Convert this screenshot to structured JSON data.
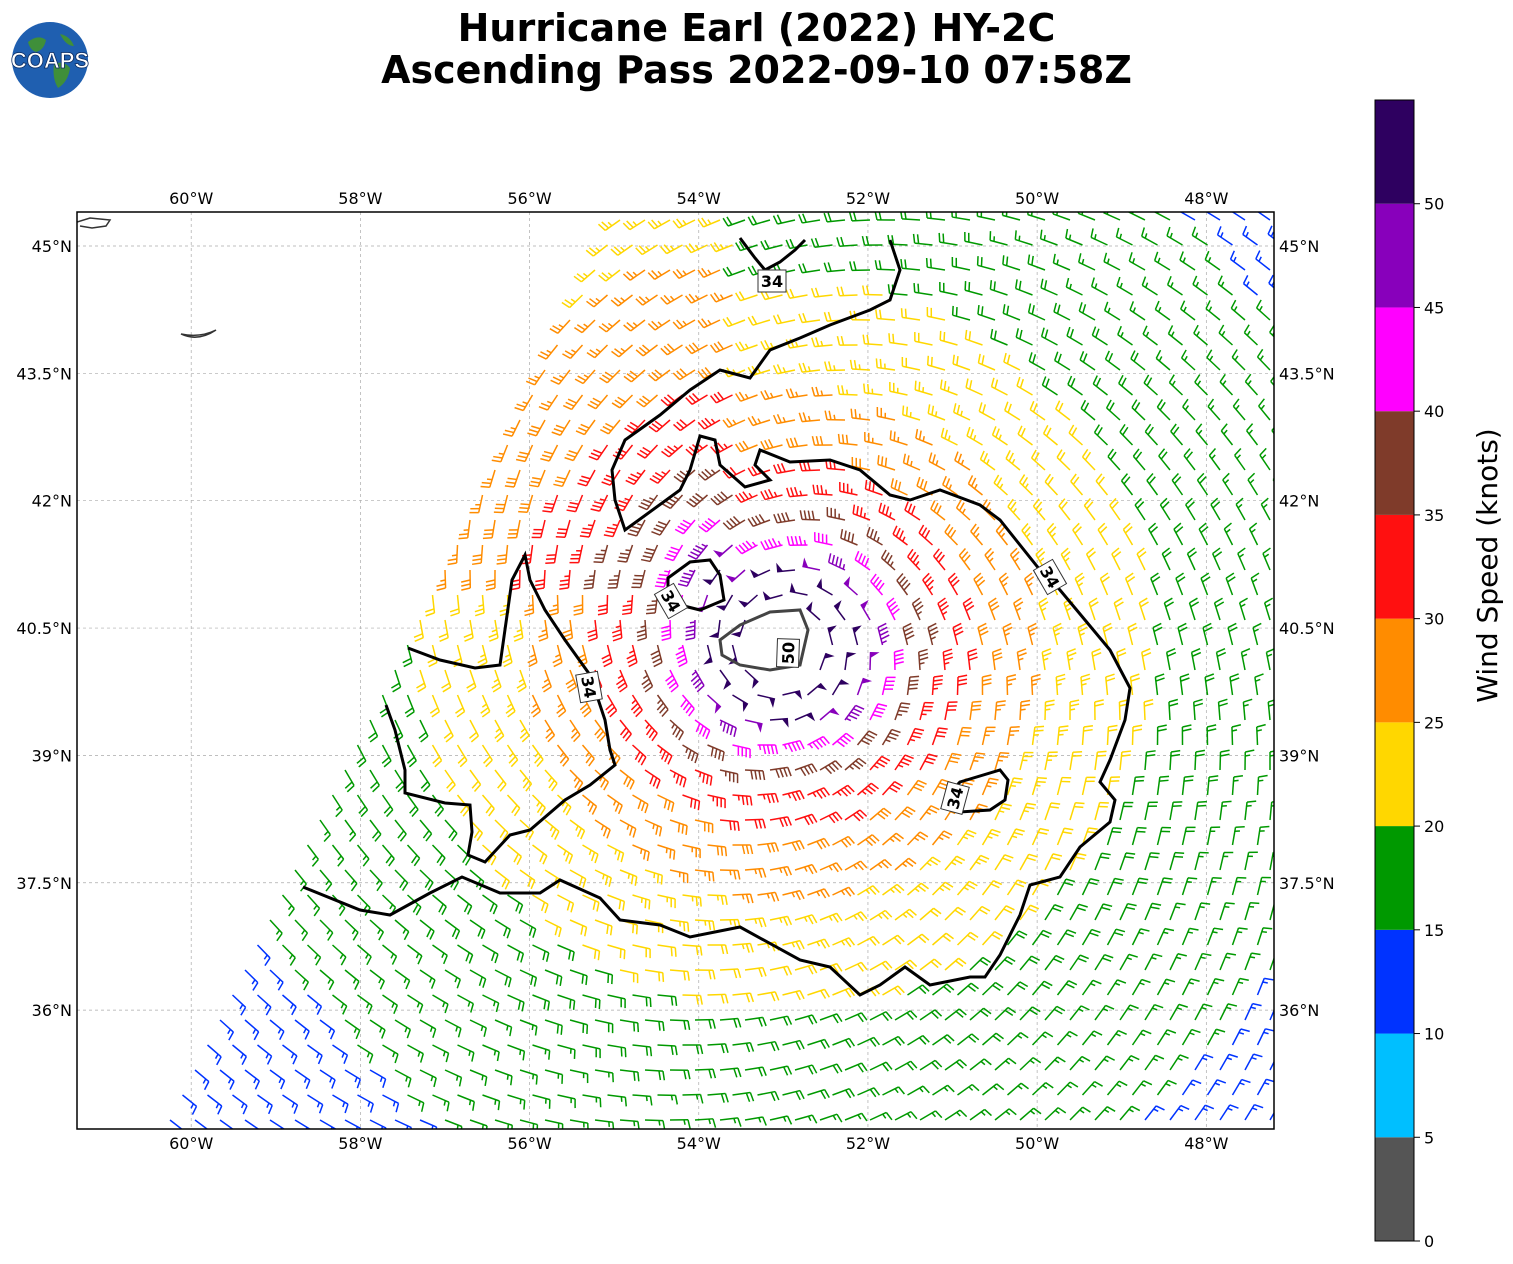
{
  "title": {
    "line1": "Hurricane Earl (2022) HY-2C",
    "line2": "Ascending Pass 2022-09-10 07:58Z"
  },
  "logo": {
    "text": "COAPS",
    "icon": "globe-logo"
  },
  "map": {
    "lon_range": [
      -61.35,
      -47.2
    ],
    "lat_range": [
      34.6,
      45.4
    ],
    "lon_ticks": [
      {
        "value": -60,
        "label": "60°W"
      },
      {
        "value": -58,
        "label": "58°W"
      },
      {
        "value": -56,
        "label": "56°W"
      },
      {
        "value": -54,
        "label": "54°W"
      },
      {
        "value": -52,
        "label": "52°W"
      },
      {
        "value": -50,
        "label": "50°W"
      },
      {
        "value": -48,
        "label": "48°W"
      }
    ],
    "lat_ticks": [
      {
        "value": 45,
        "label": "45°N"
      },
      {
        "value": 43.5,
        "label": "43.5°N"
      },
      {
        "value": 42,
        "label": "42°N"
      },
      {
        "value": 40.5,
        "label": "40.5°N"
      },
      {
        "value": 39,
        "label": "39°N"
      },
      {
        "value": 37.5,
        "label": "37.5°N"
      },
      {
        "value": 36,
        "label": "36°N"
      }
    ],
    "grid": true,
    "storm_center": {
      "lon": -53.0,
      "lat": 40.3
    },
    "contour_labels": [
      "34",
      "34",
      "34",
      "34",
      "34",
      "50"
    ]
  },
  "colorbar": {
    "label": "Wind Speed (knots)",
    "bounds": [
      0,
      5,
      10,
      15,
      20,
      25,
      30,
      35,
      40,
      45,
      50,
      55
    ],
    "tick_labels": [
      "0",
      "5",
      "10",
      "15",
      "20",
      "25",
      "30",
      "35",
      "40",
      "45",
      "50"
    ],
    "colors": [
      "#555555",
      "#00bfff",
      "#0033ff",
      "#009900",
      "#ffd700",
      "#ff8c00",
      "#ff1010",
      "#7f3b2a",
      "#ff00ff",
      "#8800bb",
      "#2e0060"
    ]
  }
}
